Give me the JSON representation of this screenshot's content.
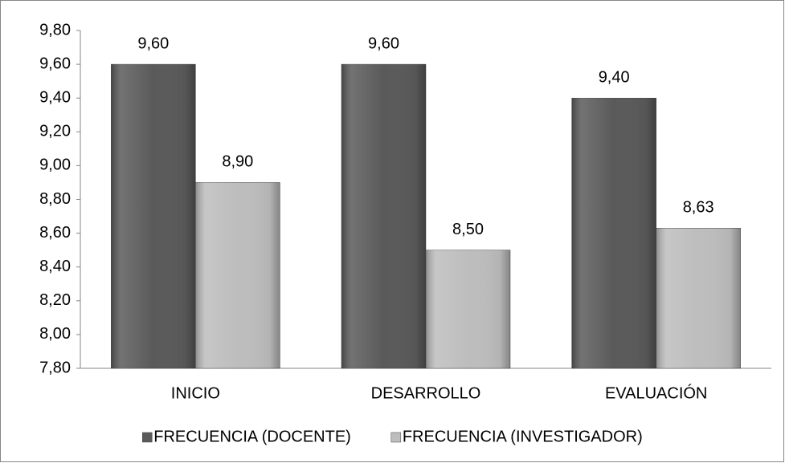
{
  "chart_data": {
    "type": "bar",
    "categories": [
      "INICIO",
      "DESARROLLO",
      "EVALUACIÓN"
    ],
    "series": [
      {
        "name": "FRECUENCIA (DOCENTE)",
        "color": "#5a5a5a",
        "values": [
          9.6,
          9.6,
          9.4
        ],
        "value_labels": [
          "9,60",
          "9,60",
          "9,40"
        ]
      },
      {
        "name": "FRECUENCIA (INVESTIGADOR)",
        "color": "#bdbdbd",
        "values": [
          8.9,
          8.5,
          8.63
        ],
        "value_labels": [
          "8,90",
          "8,50",
          "8,63"
        ]
      }
    ],
    "ylim": [
      7.8,
      9.8
    ],
    "yticks": [
      {
        "value": 7.8,
        "label": "7,80"
      },
      {
        "value": 8.0,
        "label": "8,00"
      },
      {
        "value": 8.2,
        "label": "8,20"
      },
      {
        "value": 8.4,
        "label": "8,40"
      },
      {
        "value": 8.6,
        "label": "8,60"
      },
      {
        "value": 8.8,
        "label": "8,80"
      },
      {
        "value": 9.0,
        "label": "9,00"
      },
      {
        "value": 9.2,
        "label": "9,20"
      },
      {
        "value": 9.4,
        "label": "9,40"
      },
      {
        "value": 9.6,
        "label": "9,60"
      },
      {
        "value": 9.8,
        "label": "9,80"
      }
    ],
    "grid": false,
    "legend": "bottom"
  }
}
